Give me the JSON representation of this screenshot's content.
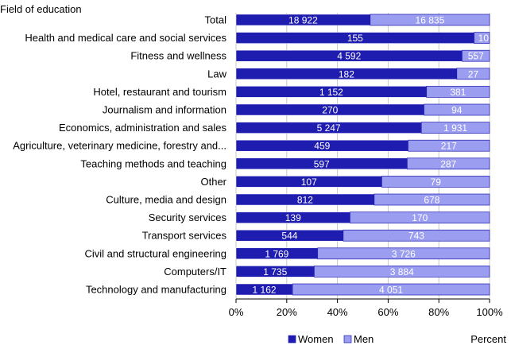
{
  "chart_data": {
    "type": "bar",
    "orientation": "horizontal",
    "stacked": "percent",
    "y_axis_title": "Field of education",
    "x_axis_unit_label": "Percent",
    "categories": [
      "Total",
      "Health and medical care and social services",
      "Fitness and wellness",
      "Law",
      "Hotel, restaurant and tourism",
      "Journalism and information",
      "Economics, administration and sales",
      "Agriculture, veterinary medicine, forestry and...",
      "Teaching methods and teaching",
      "Other",
      "Culture, media and design",
      "Security services",
      "Transport services",
      "Civil and structural engineering",
      "Computers/IT",
      "Technology and manufacturing"
    ],
    "series": [
      {
        "name": "Women",
        "color": "#1f1cb0",
        "values": [
          18922,
          155,
          4592,
          182,
          1152,
          270,
          5247,
          459,
          597,
          107,
          812,
          139,
          544,
          1769,
          1735,
          1162
        ],
        "labels": [
          "18 922",
          "155",
          "4 592",
          "182",
          "1 152",
          "270",
          "5 247",
          "459",
          "597",
          "107",
          "812",
          "139",
          "544",
          "1 769",
          "1 735",
          "1 162"
        ]
      },
      {
        "name": "Men",
        "color": "#9a9df0",
        "values": [
          16835,
          10,
          557,
          27,
          381,
          94,
          1931,
          217,
          287,
          79,
          678,
          170,
          743,
          3726,
          3884,
          4051
        ],
        "labels": [
          "16 835",
          "10",
          "557",
          "27",
          "381",
          "94",
          "1 931",
          "217",
          "287",
          "79",
          "678",
          "170",
          "743",
          "3 726",
          "3 884",
          "4 051"
        ]
      }
    ],
    "x_ticks": [
      "0%",
      "20%",
      "40%",
      "60%",
      "80%",
      "100%"
    ],
    "xlim": [
      0,
      100
    ],
    "grid": true,
    "legend_position": "bottom-center"
  }
}
